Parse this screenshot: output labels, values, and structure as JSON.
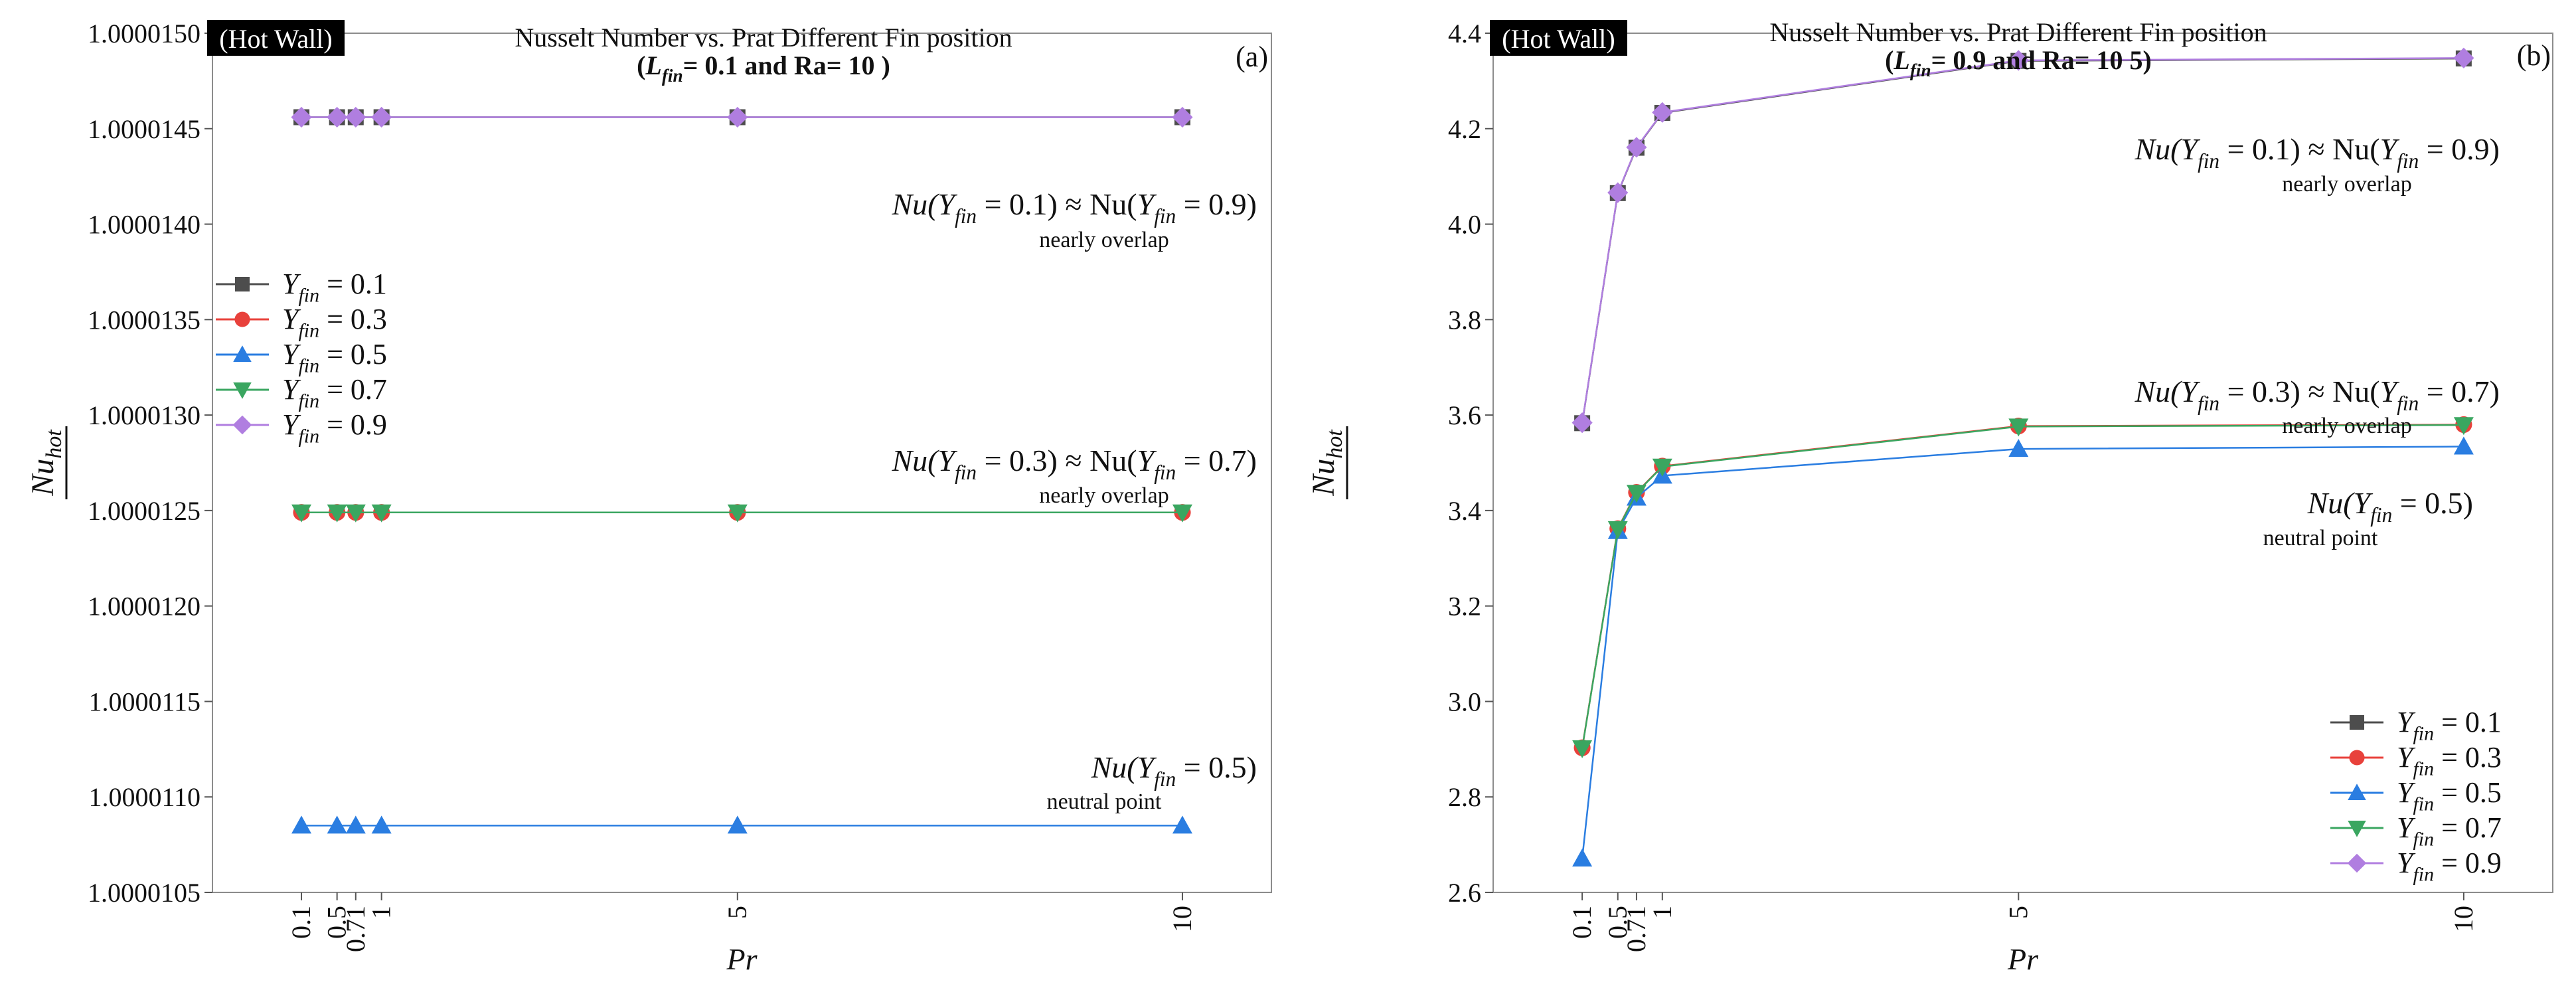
{
  "figure": {
    "panels": [
      {
        "id": "a",
        "panel_label": "(a)",
        "badge": "(Hot Wall)",
        "title_line1": "Nusselt Number vs. Prat Different Fin position",
        "title_line2": "(L_fin= 0.1 and  Ra= 10 )",
        "annotations": [
          {
            "formula": "Nu(Y_fin = 0.1) ≈ Nu(Y_fin = 0.9)",
            "note": "nearly overlap"
          },
          {
            "formula": "Nu(Y_fin = 0.3) ≈ Nu(Y_fin = 0.7)",
            "note": "nearly overlap"
          },
          {
            "formula": "Nu(Y_fin = 0.5)",
            "note": "neutral point"
          }
        ],
        "legend_position": "left"
      },
      {
        "id": "b",
        "panel_label": "(b)",
        "badge": "(Hot Wall)",
        "title_line1": "Nusselt Number vs. Prat Different Fin position",
        "title_line2": "(L_fin= 0.9 and  Ra= 10 5)",
        "annotations": [
          {
            "formula": "Nu(Y_fin = 0.1) ≈ Nu(Y_fin = 0.9)",
            "note": "nearly overlap"
          },
          {
            "formula": "Nu(Y_fin = 0.3) ≈ Nu(Y_fin = 0.7)",
            "note": "nearly overlap"
          },
          {
            "formula": "Nu(Y_fin = 0.5)",
            "note": "neutral point"
          }
        ],
        "legend_position": "bottom-right"
      }
    ]
  },
  "chart_data": [
    {
      "type": "line",
      "title": "Nusselt Number vs. Pr at Different Fin position",
      "subtitle": "(L_fin = 0.1 and Ra = 10)",
      "xlabel": "Pr",
      "ylabel": "Nu_hot (overline)",
      "x": [
        0.1,
        0.5,
        0.71,
        1,
        5,
        10
      ],
      "x_tick_labels": [
        "0.1",
        "0.5",
        "0.71",
        "1",
        "5",
        "10"
      ],
      "xlim": [
        -0.9,
        11
      ],
      "ylim": [
        1.0000105,
        1.000015
      ],
      "y_ticks": [
        1.0000105,
        1.000011,
        1.0000115,
        1.000012,
        1.0000125,
        1.000013,
        1.0000135,
        1.000014,
        1.0000145,
        1.000015
      ],
      "y_tick_labels": [
        "1.0000105",
        "1.0000110",
        "1.0000115",
        "1.0000120",
        "1.0000125",
        "1.0000130",
        "1.0000135",
        "1.0000140",
        "1.0000145",
        "1.0000150"
      ],
      "grid": false,
      "series": [
        {
          "name": "Y_fin = 0.1",
          "label": "Y_fin = 0.1",
          "color": "#4d4d4d",
          "marker": "square",
          "values": [
            1.00001456,
            1.00001456,
            1.00001456,
            1.00001456,
            1.00001456,
            1.00001456
          ]
        },
        {
          "name": "Y_fin = 0.3",
          "label": "Y_fin = 0.3",
          "color": "#e8413b",
          "marker": "circle",
          "values": [
            1.00001249,
            1.00001249,
            1.00001249,
            1.00001249,
            1.00001249,
            1.00001249
          ]
        },
        {
          "name": "Y_fin = 0.5",
          "label": "Y_fin = 0.5",
          "color": "#2a7de1",
          "marker": "triangle-up",
          "values": [
            1.00001085,
            1.00001085,
            1.00001085,
            1.00001085,
            1.00001085,
            1.00001085
          ]
        },
        {
          "name": "Y_fin = 0.7",
          "label": "Y_fin = 0.7",
          "color": "#3aa660",
          "marker": "triangle-down",
          "values": [
            1.00001249,
            1.00001249,
            1.00001249,
            1.00001249,
            1.00001249,
            1.00001249
          ]
        },
        {
          "name": "Y_fin = 0.9",
          "label": "Y_fin = 0.9",
          "color": "#b07ee0",
          "marker": "diamond",
          "values": [
            1.00001456,
            1.00001456,
            1.00001456,
            1.00001456,
            1.00001456,
            1.00001456
          ]
        }
      ]
    },
    {
      "type": "line",
      "title": "Nusselt Number vs. Pr at Different Fin position",
      "subtitle": "(L_fin = 0.9 and Ra = 10^5)",
      "xlabel": "Pr",
      "ylabel": "Nu_hot (overline)",
      "x": [
        0.1,
        0.5,
        0.71,
        1,
        5,
        10
      ],
      "x_tick_labels": [
        "0.1",
        "0.5",
        "0.71",
        "1",
        "5",
        "10"
      ],
      "xlim": [
        -0.9,
        11
      ],
      "ylim": [
        2.6,
        4.4
      ],
      "y_ticks": [
        2.6,
        2.8,
        3.0,
        3.2,
        3.4,
        3.6,
        3.8,
        4.0,
        4.2,
        4.4
      ],
      "y_tick_labels": [
        "2.6",
        "2.8",
        "3.0",
        "3.2",
        "3.4",
        "3.6",
        "3.8",
        "4.0",
        "4.2",
        "4.4"
      ],
      "grid": false,
      "series": [
        {
          "name": "Y_fin = 0.1",
          "label": "Y_fin = 0.1",
          "color": "#4d4d4d",
          "marker": "square",
          "values": [
            3.583,
            4.065,
            4.16,
            4.233,
            4.342,
            4.347
          ]
        },
        {
          "name": "Y_fin = 0.3",
          "label": "Y_fin = 0.3",
          "color": "#e8413b",
          "marker": "circle",
          "values": [
            2.903,
            3.362,
            3.438,
            3.493,
            3.577,
            3.58
          ]
        },
        {
          "name": "Y_fin = 0.5",
          "label": "Y_fin = 0.5",
          "color": "#2a7de1",
          "marker": "triangle-up",
          "values": [
            2.671,
            3.357,
            3.427,
            3.473,
            3.529,
            3.534
          ]
        },
        {
          "name": "Y_fin = 0.7",
          "label": "Y_fin = 0.7",
          "color": "#3aa660",
          "marker": "triangle-down",
          "values": [
            2.902,
            3.361,
            3.437,
            3.492,
            3.576,
            3.579
          ]
        },
        {
          "name": "Y_fin = 0.9",
          "label": "Y_fin = 0.9",
          "color": "#b07ee0",
          "marker": "diamond",
          "values": [
            3.584,
            4.066,
            4.161,
            4.234,
            4.343,
            4.348
          ]
        }
      ]
    }
  ]
}
